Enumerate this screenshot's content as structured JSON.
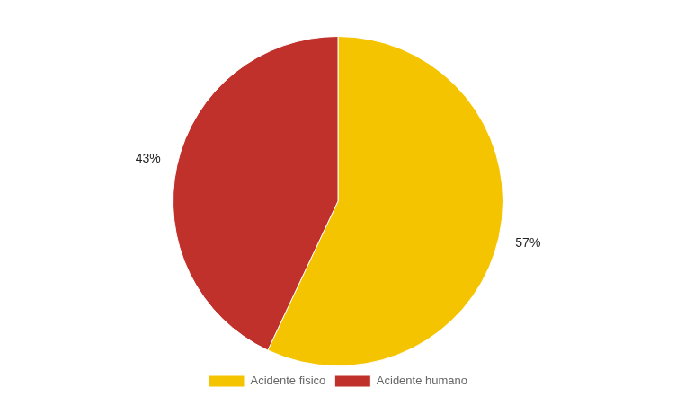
{
  "chart_data": {
    "type": "pie",
    "categories": [
      "Acidente fisico",
      "Acidente humano"
    ],
    "values": [
      57,
      43
    ],
    "value_labels": [
      "57%",
      "43%"
    ],
    "colors": [
      "#F5C400",
      "#C0312B"
    ],
    "data_labels": true,
    "legend": "bottom"
  }
}
